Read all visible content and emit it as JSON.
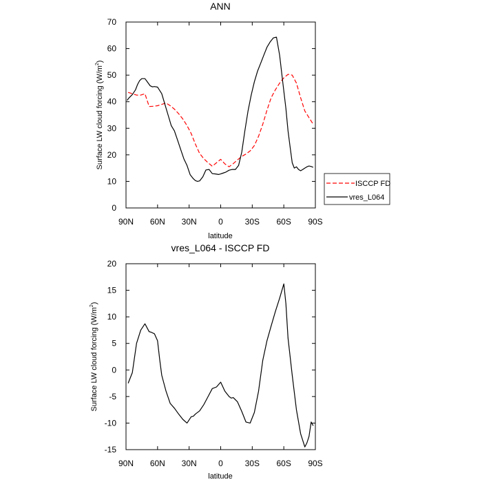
{
  "chart_data": [
    {
      "type": "line",
      "title": "ANN",
      "xlabel": "latitude",
      "ylabel": "Surface LW cloud forcing (W/m",
      "ylabel_sup": "2",
      "ylabel_suffix": ")",
      "xlim": [
        90,
        -90
      ],
      "ylim": [
        0,
        70
      ],
      "xticks": [
        90,
        60,
        30,
        0,
        -30,
        -60,
        -90
      ],
      "xtick_labels": [
        "90N",
        "60N",
        "30N",
        "0",
        "30S",
        "60S",
        "90S"
      ],
      "yticks": [
        0,
        10,
        20,
        30,
        40,
        50,
        60,
        70
      ],
      "ytick_labels": [
        "0",
        "10",
        "20",
        "30",
        "40",
        "50",
        "60",
        "70"
      ],
      "legend": {
        "location": "right-outside",
        "entries": [
          "ISCCP FD",
          "vres_L064"
        ]
      },
      "series": [
        {
          "name": "ISCCP FD",
          "color": "#ff0000",
          "style": "dashed",
          "x": [
            88,
            84,
            80,
            76,
            72,
            68,
            64,
            60,
            56,
            52,
            48,
            44,
            40,
            36,
            32,
            28,
            24,
            20,
            16,
            12,
            8,
            4,
            0,
            -4,
            -8,
            -12,
            -16,
            -20,
            -24,
            -28,
            -32,
            -36,
            -40,
            -44,
            -48,
            -52,
            -56,
            -60,
            -64,
            -68,
            -72,
            -76,
            -80,
            -84,
            -88
          ],
          "values": [
            43.5,
            43,
            42.5,
            42.5,
            43,
            38.2,
            38.3,
            38.5,
            39,
            39.5,
            38.5,
            37.2,
            35.5,
            33.5,
            31,
            28,
            24,
            20.5,
            18.5,
            17,
            15.7,
            17,
            18.3,
            16.6,
            15.5,
            16.7,
            18.1,
            19.4,
            20.3,
            21.5,
            23.5,
            27,
            31.5,
            36.8,
            41.5,
            44.5,
            47,
            49,
            50.3,
            50,
            47,
            41.5,
            36.5,
            34,
            31.5
          ]
        },
        {
          "name": "vres_L064",
          "color": "#000000",
          "style": "solid",
          "x": [
            89,
            87,
            84,
            81,
            79,
            77,
            75,
            72,
            70,
            67,
            65,
            63,
            60,
            56,
            53,
            50,
            47,
            44,
            41,
            38,
            35,
            32,
            29,
            26,
            24,
            22,
            20,
            17,
            14,
            11,
            8,
            5,
            2,
            0,
            -2,
            -5,
            -8,
            -11,
            -14,
            -17,
            -20,
            -23,
            -26,
            -29,
            -32,
            -35,
            -38,
            -41,
            -44,
            -47,
            -50,
            -53,
            -56,
            -59,
            -62,
            -64,
            -66,
            -68,
            -70,
            -72,
            -74,
            -76,
            -78,
            -80,
            -82,
            -84,
            -86,
            -88
          ],
          "values": [
            40.5,
            41.5,
            42.7,
            44.5,
            46.5,
            48,
            48.7,
            48.7,
            47.6,
            46,
            45.6,
            45.7,
            45.5,
            43,
            39,
            35,
            31,
            29,
            25.5,
            22,
            18.5,
            16,
            12.5,
            11,
            10.3,
            10,
            10.2,
            11.7,
            14.3,
            14.5,
            12.9,
            12.8,
            12.6,
            12.8,
            13.1,
            13.5,
            14.2,
            14.5,
            14.5,
            16,
            21,
            29,
            36.5,
            42.5,
            47.5,
            51.5,
            54.5,
            57.5,
            60.5,
            62.5,
            64,
            64.3,
            57.5,
            47.5,
            37.5,
            29,
            23,
            17,
            15,
            15.5,
            14.5,
            14,
            14.5,
            15,
            15.5,
            15.8,
            15.6,
            15.3
          ]
        }
      ]
    },
    {
      "type": "line",
      "title": "vres_L064 - ISCCP FD",
      "xlabel": "latitude",
      "ylabel": "Surface LW cloud forcing (W/m",
      "ylabel_sup": "2",
      "ylabel_suffix": ")",
      "xlim": [
        90,
        -90
      ],
      "ylim": [
        -15,
        20
      ],
      "xticks": [
        90,
        60,
        30,
        0,
        -30,
        -60,
        -90
      ],
      "xtick_labels": [
        "90N",
        "60N",
        "30N",
        "0",
        "30S",
        "60S",
        "90S"
      ],
      "yticks": [
        -15,
        -10,
        -5,
        0,
        5,
        10,
        15,
        20
      ],
      "ytick_labels": [
        "-15",
        "-10",
        "-5",
        "0",
        "5",
        "10",
        "15",
        "20"
      ],
      "series": [
        {
          "name": "vres_L064 - ISCCP FD",
          "color": "#000000",
          "style": "solid",
          "x": [
            88,
            84,
            80,
            76,
            72,
            68,
            66,
            63,
            60,
            58,
            56,
            52,
            48,
            44,
            40,
            36,
            32,
            28,
            26,
            24,
            20,
            16,
            12,
            8,
            4,
            0,
            -4,
            -8,
            -10,
            -12,
            -16,
            -20,
            -24,
            -28,
            -32,
            -36,
            -40,
            -44,
            -48,
            -52,
            -56,
            -60,
            -62,
            -64,
            -68,
            -72,
            -76,
            -80,
            -82,
            -84,
            -86,
            -88
          ],
          "values": [
            -2.5,
            -0.5,
            5,
            7.5,
            8.7,
            7.2,
            7.1,
            6.8,
            5.5,
            2,
            -1,
            -4,
            -6.3,
            -7.2,
            -8.3,
            -9.3,
            -10,
            -8.8,
            -8.7,
            -8.3,
            -7.7,
            -6.5,
            -5,
            -3.5,
            -3.2,
            -2.3,
            -4,
            -5,
            -5.3,
            -5.2,
            -6,
            -7.8,
            -9.8,
            -10,
            -8,
            -4,
            1.8,
            5.5,
            8.3,
            11,
            13.5,
            16.2,
            12.5,
            6,
            -1,
            -7.5,
            -12,
            -14.5,
            -13.7,
            -12.5,
            -9.8,
            -10.5
          ]
        }
      ]
    }
  ]
}
